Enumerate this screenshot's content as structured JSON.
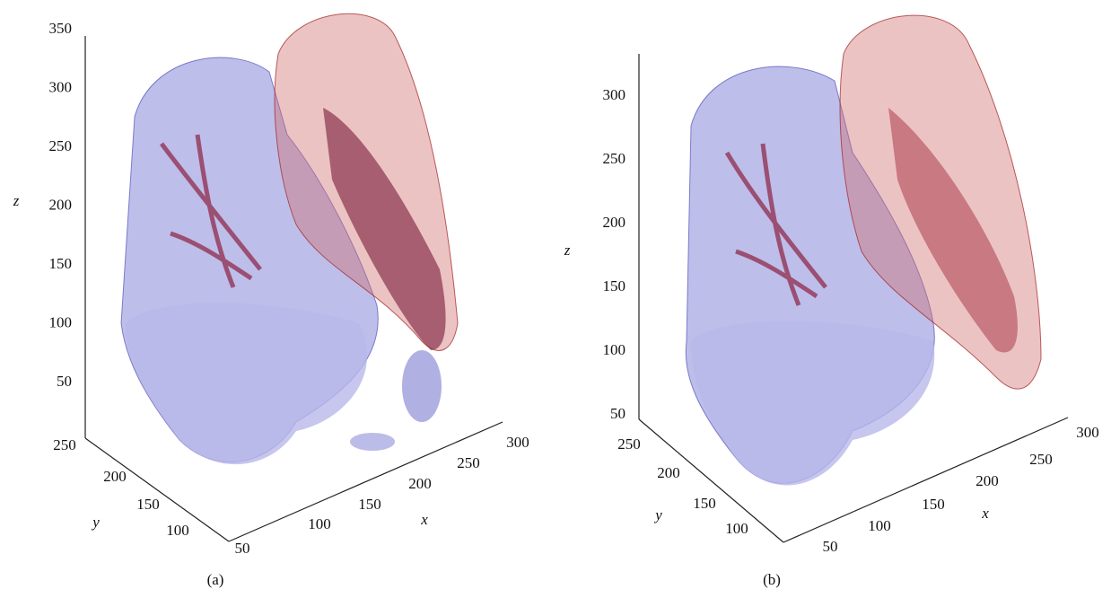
{
  "panels": [
    {
      "caption": "(a)",
      "x_axis": {
        "label": "x",
        "ticks": [
          50,
          100,
          150,
          200,
          250,
          300
        ]
      },
      "y_axis": {
        "label": "y",
        "ticks": [
          100,
          150,
          200,
          250
        ]
      },
      "z_axis": {
        "label": "z",
        "ticks": [
          50,
          100,
          150,
          200,
          250,
          300,
          350
        ]
      }
    },
    {
      "caption": "(b)",
      "x_axis": {
        "label": "x",
        "ticks": [
          50,
          100,
          150,
          200,
          250,
          300
        ]
      },
      "y_axis": {
        "label": "y",
        "ticks": [
          100,
          150,
          200,
          250
        ]
      },
      "z_axis": {
        "label": "z",
        "ticks": [
          50,
          100,
          150,
          200,
          250,
          300
        ]
      }
    }
  ]
}
